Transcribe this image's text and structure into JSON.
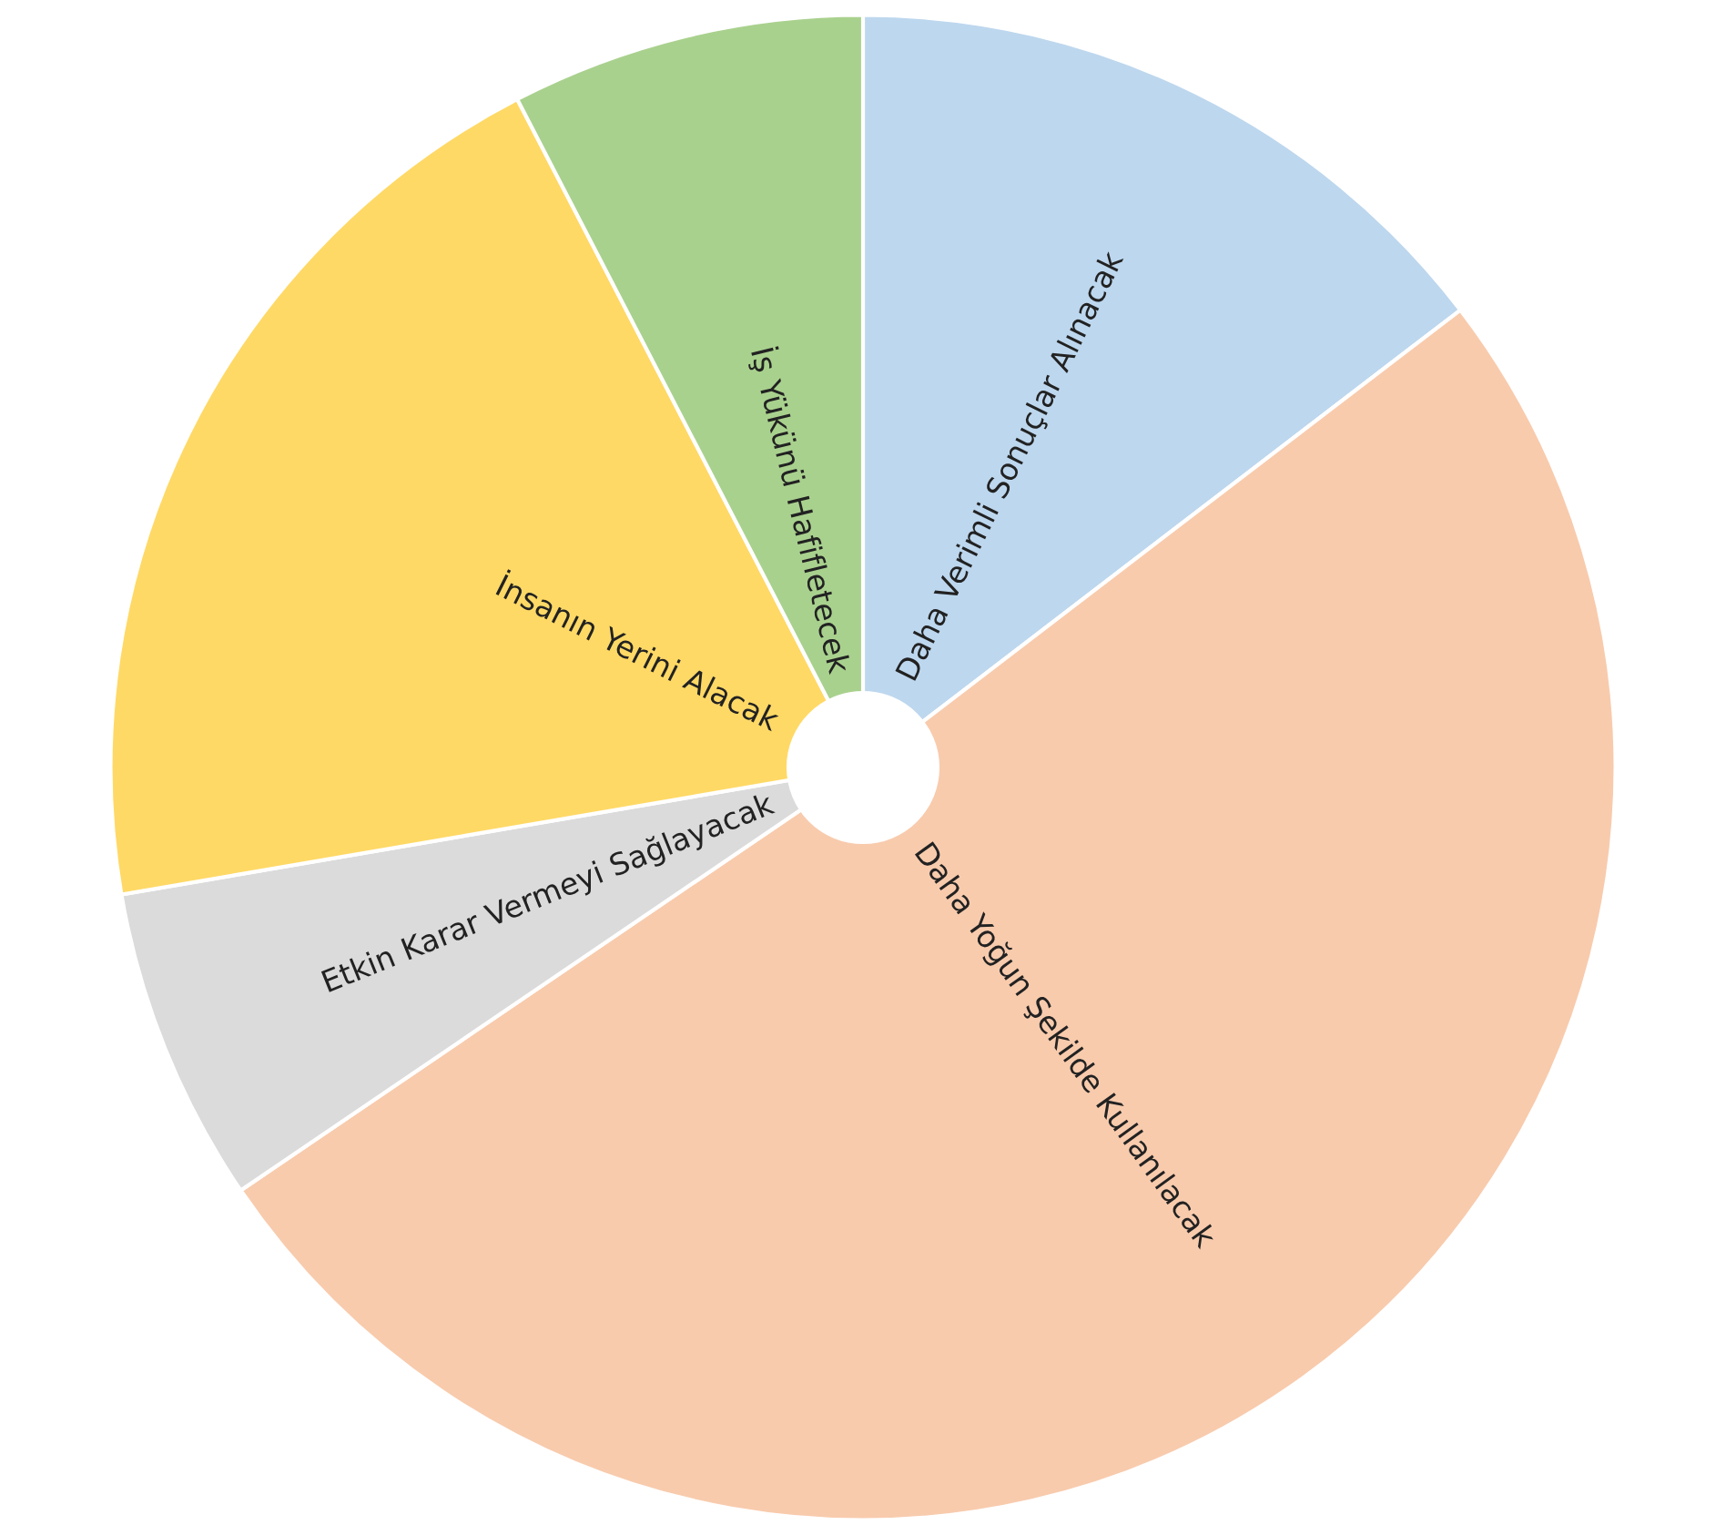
{
  "chart_data": {
    "type": "pie",
    "categories": [
      "Daha Verimli Sonuçlar Alınacak",
      "Daha Yoğun Şekilde Kullanılacak",
      "Etkin Karar Vermeyi Sağlayacak",
      "İnsanın Yerini Alacak",
      "İş Yükünü Hafifletecek"
    ],
    "values": [
      14.6,
      50.9,
      6.8,
      20.1,
      7.6
    ],
    "colors": [
      "#bdd7ee",
      "#f8cbad",
      "#dbdbdb",
      "#ffd966",
      "#a9d18e"
    ],
    "legend": false
  }
}
